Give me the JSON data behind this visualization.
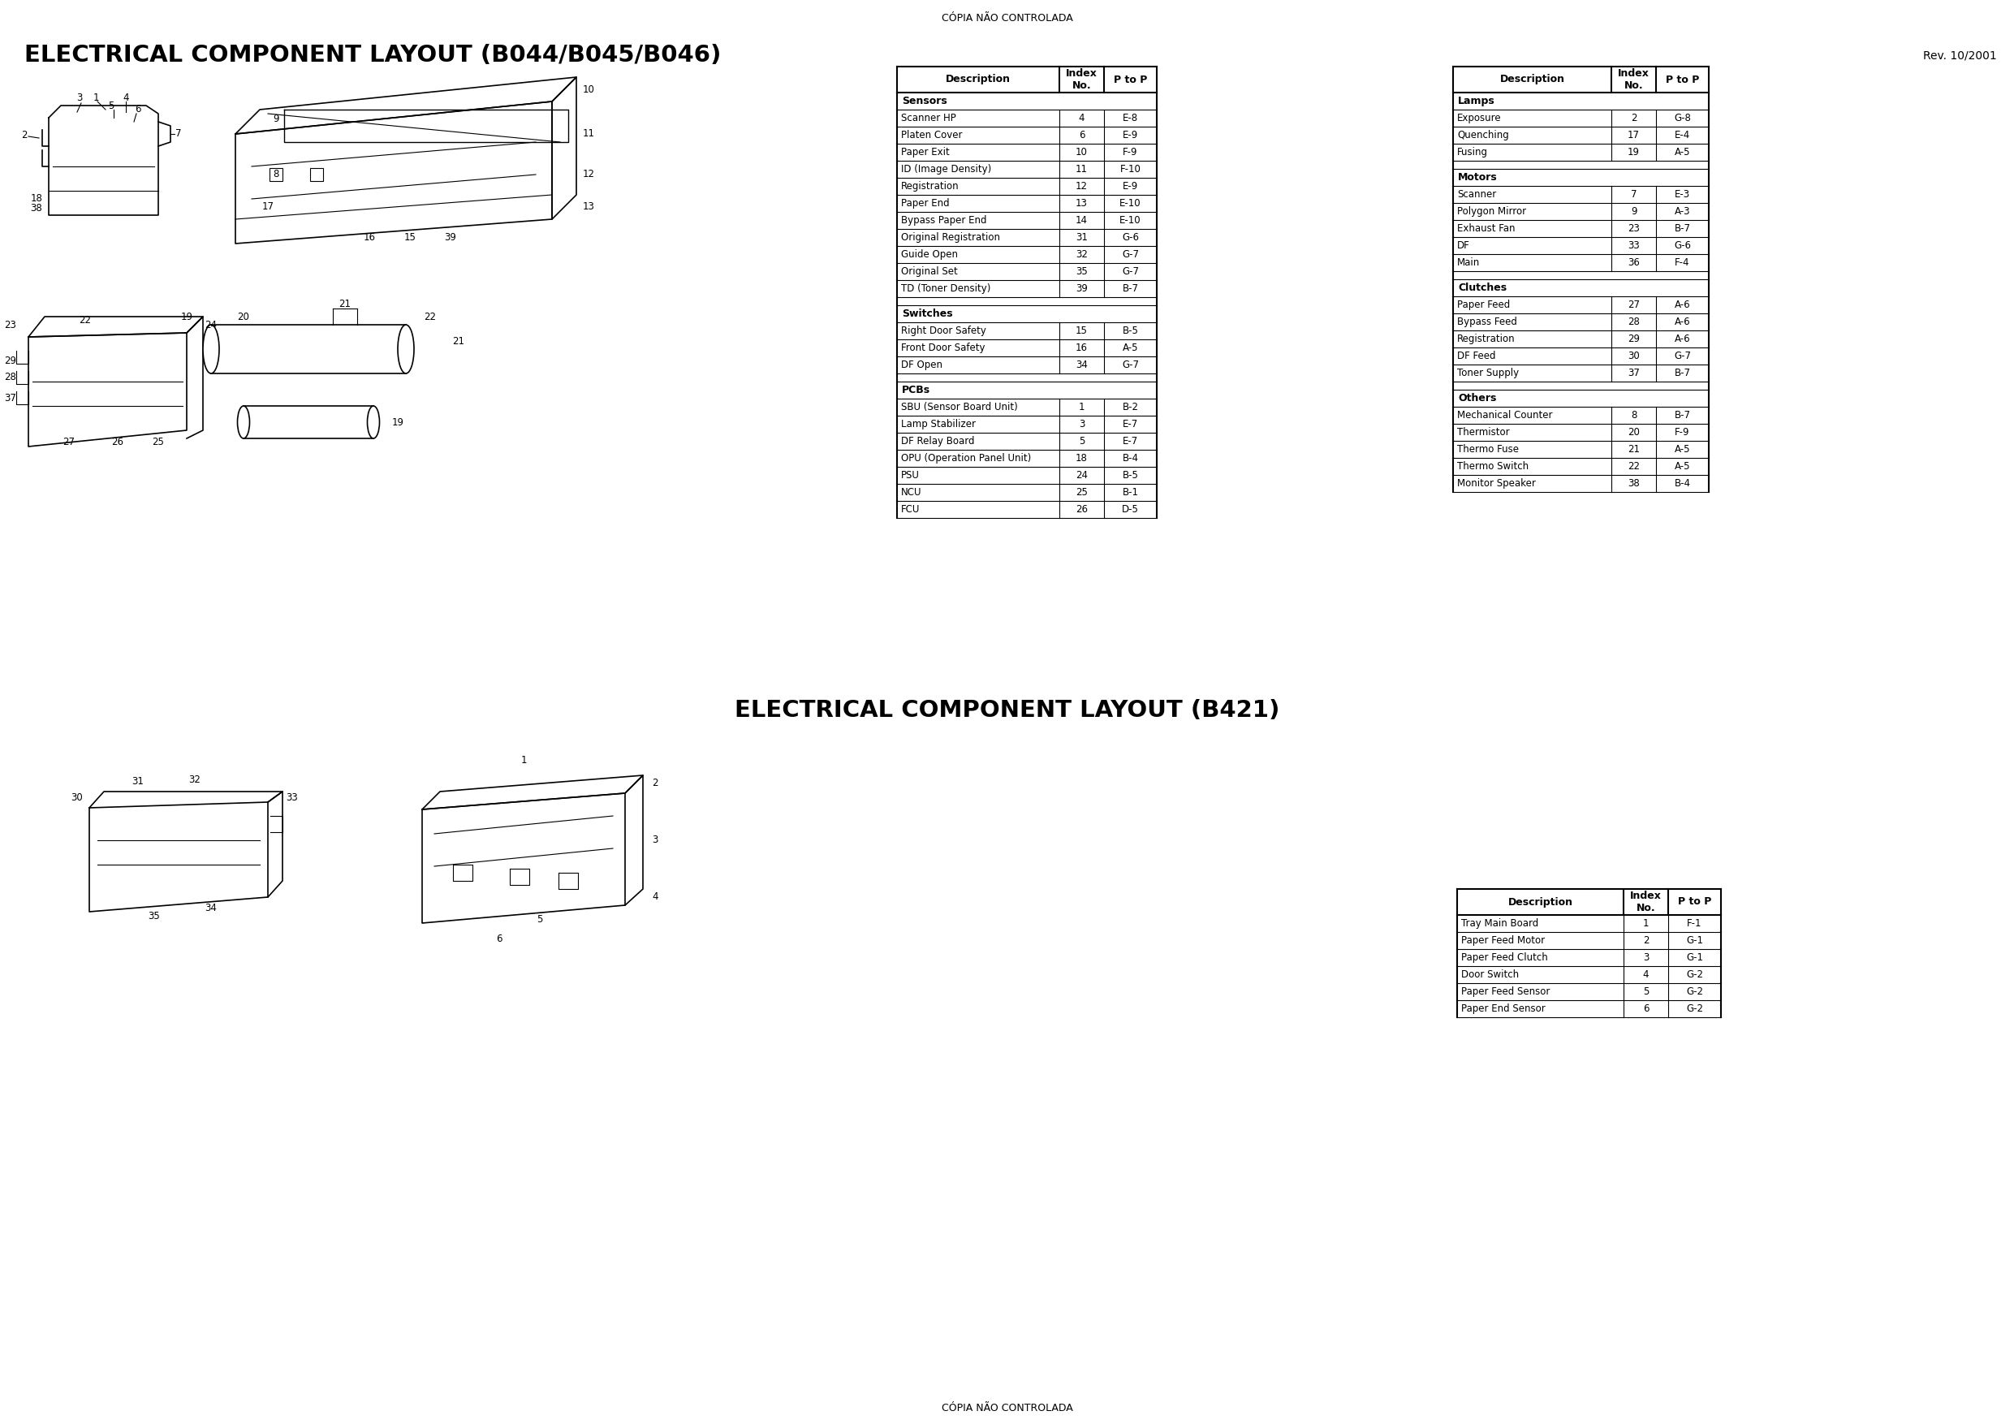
{
  "page_title_top": "CÓPIA NÃO CONTROLADA",
  "page_title_bottom": "CÓPIA NÃO CONTROLADA",
  "section1_title": "ELECTRICAL COMPONENT LAYOUT (B044/B045/B046)",
  "section1_rev": "Rev. 10/2001",
  "section2_title": "ELECTRICAL COMPONENT LAYOUT (B421)",
  "table1_headers": [
    "Description",
    "Index\nNo.",
    "P to P"
  ],
  "table1_data": [
    [
      "Sensors",
      "",
      ""
    ],
    [
      "Scanner HP",
      "4",
      "E-8"
    ],
    [
      "Platen Cover",
      "6",
      "E-9"
    ],
    [
      "Paper Exit",
      "10",
      "F-9"
    ],
    [
      "ID (Image Density)",
      "11",
      "F-10"
    ],
    [
      "Registration",
      "12",
      "E-9"
    ],
    [
      "Paper End",
      "13",
      "E-10"
    ],
    [
      "Bypass Paper End",
      "14",
      "E-10"
    ],
    [
      "Original Registration",
      "31",
      "G-6"
    ],
    [
      "Guide Open",
      "32",
      "G-7"
    ],
    [
      "Original Set",
      "35",
      "G-7"
    ],
    [
      "TD (Toner Density)",
      "39",
      "B-7"
    ],
    [
      "",
      "",
      ""
    ],
    [
      "Switches",
      "",
      ""
    ],
    [
      "Right Door Safety",
      "15",
      "B-5"
    ],
    [
      "Front Door Safety",
      "16",
      "A-5"
    ],
    [
      "DF Open",
      "34",
      "G-7"
    ],
    [
      "",
      "",
      ""
    ],
    [
      "PCBs",
      "",
      ""
    ],
    [
      "SBU (Sensor Board Unit)",
      "1",
      "B-2"
    ],
    [
      "Lamp Stabilizer",
      "3",
      "E-7"
    ],
    [
      "DF Relay Board",
      "5",
      "E-7"
    ],
    [
      "OPU (Operation Panel Unit)",
      "18",
      "B-4"
    ],
    [
      "PSU",
      "24",
      "B-5"
    ],
    [
      "NCU",
      "25",
      "B-1"
    ],
    [
      "FCU",
      "26",
      "D-5"
    ]
  ],
  "table2_headers": [
    "Description",
    "Index\nNo.",
    "P to P"
  ],
  "table2_data": [
    [
      "Lamps",
      "",
      ""
    ],
    [
      "Exposure",
      "2",
      "G-8"
    ],
    [
      "Quenching",
      "17",
      "E-4"
    ],
    [
      "Fusing",
      "19",
      "A-5"
    ],
    [
      "",
      "",
      ""
    ],
    [
      "Motors",
      "",
      ""
    ],
    [
      "Scanner",
      "7",
      "E-3"
    ],
    [
      "Polygon Mirror",
      "9",
      "A-3"
    ],
    [
      "Exhaust Fan",
      "23",
      "B-7"
    ],
    [
      "DF",
      "33",
      "G-6"
    ],
    [
      "Main",
      "36",
      "F-4"
    ],
    [
      "",
      "",
      ""
    ],
    [
      "Clutches",
      "",
      ""
    ],
    [
      "Paper Feed",
      "27",
      "A-6"
    ],
    [
      "Bypass Feed",
      "28",
      "A-6"
    ],
    [
      "Registration",
      "29",
      "A-6"
    ],
    [
      "DF Feed",
      "30",
      "G-7"
    ],
    [
      "Toner Supply",
      "37",
      "B-7"
    ],
    [
      "",
      "",
      ""
    ],
    [
      "Others",
      "",
      ""
    ],
    [
      "Mechanical Counter",
      "8",
      "B-7"
    ],
    [
      "Thermistor",
      "20",
      "F-9"
    ],
    [
      "Thermo Fuse",
      "21",
      "A-5"
    ],
    [
      "Thermo Switch",
      "22",
      "A-5"
    ],
    [
      "Monitor Speaker",
      "38",
      "B-4"
    ]
  ],
  "table3_headers": [
    "Description",
    "Index\nNo.",
    "P to P"
  ],
  "table3_data": [
    [
      "Tray Main Board",
      "1",
      "F-1"
    ],
    [
      "Paper Feed Motor",
      "2",
      "G-1"
    ],
    [
      "Paper Feed Clutch",
      "3",
      "G-1"
    ],
    [
      "Door Switch",
      "4",
      "G-2"
    ],
    [
      "Paper Feed Sensor",
      "5",
      "G-2"
    ],
    [
      "Paper End Sensor",
      "6",
      "G-2"
    ]
  ],
  "bg_color": "#ffffff",
  "text_color": "#000000",
  "border_color": "#000000"
}
